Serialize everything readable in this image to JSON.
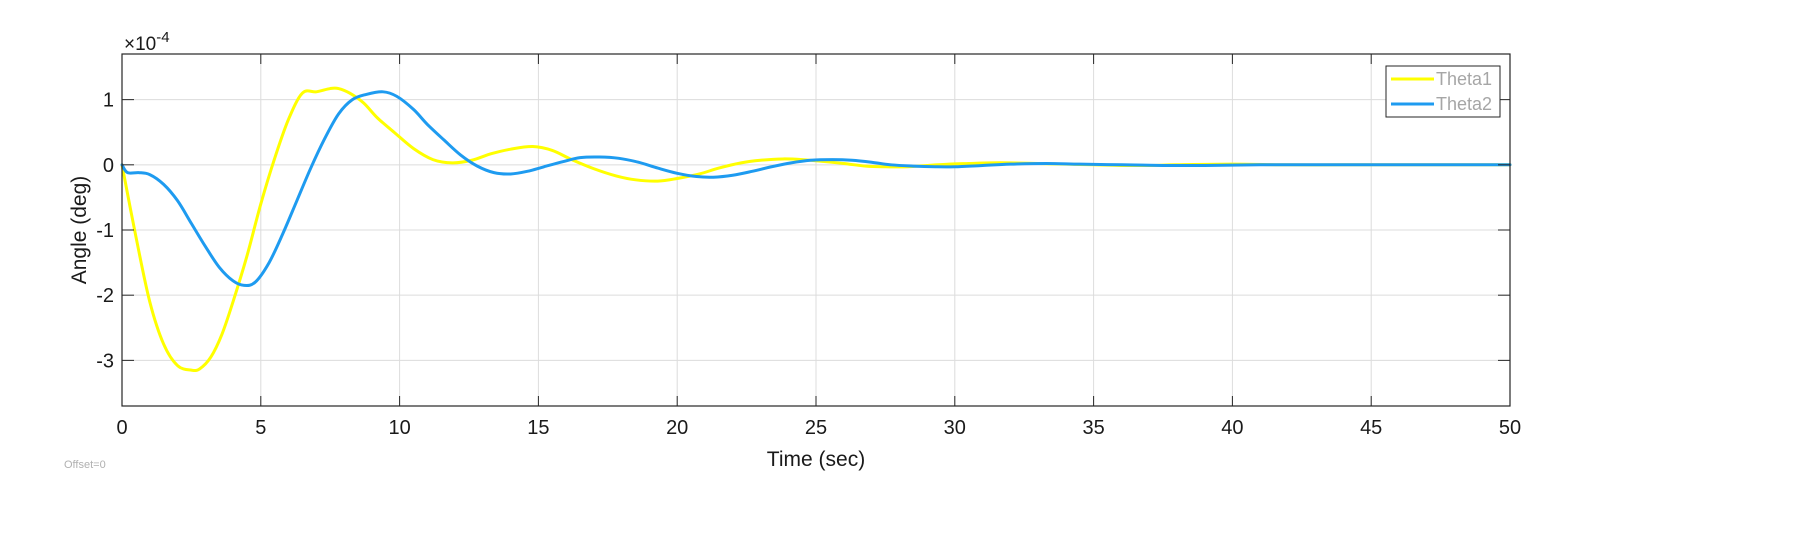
{
  "chart_data": {
    "type": "line",
    "title": "",
    "xlabel": "Time (sec)",
    "ylabel": "Angle (deg)",
    "xlim": [
      0,
      50
    ],
    "ylim": [
      -3.7,
      1.7
    ],
    "y_multiplier_label": "×10",
    "y_multiplier_exponent": "-4",
    "xticks": [
      0,
      5,
      10,
      15,
      20,
      25,
      30,
      35,
      40,
      45,
      50
    ],
    "yticks": [
      -3,
      -2,
      -1,
      0,
      1
    ],
    "grid": true,
    "legend_position": "top-right",
    "series": [
      {
        "name": "Theta1",
        "color": "#ffff00",
        "x": [
          0,
          0.5,
          1,
          1.5,
          2,
          2.5,
          2.8,
          3.2,
          3.6,
          4,
          4.5,
          5,
          5.5,
          6,
          6.5,
          7,
          7.5,
          7.8,
          8.2,
          8.7,
          9.2,
          9.8,
          10.5,
          11.2,
          11.9,
          12.6,
          13.3,
          14,
          14.8,
          15.5,
          16.2,
          17,
          17.8,
          18.5,
          19.3,
          20,
          20.8,
          21.5,
          22.3,
          23,
          23.8,
          24.5,
          25.3,
          26,
          26.8,
          27.5,
          28.3,
          29,
          29.8,
          30.5,
          31.3,
          32,
          33,
          34,
          35,
          36,
          37,
          38,
          40,
          42,
          44,
          46,
          48,
          50
        ],
        "values": [
          0,
          -1.1,
          -2.1,
          -2.75,
          -3.08,
          -3.15,
          -3.13,
          -2.95,
          -2.6,
          -2.1,
          -1.4,
          -0.6,
          0.1,
          0.7,
          1.1,
          1.12,
          1.17,
          1.17,
          1.1,
          0.95,
          0.72,
          0.5,
          0.25,
          0.08,
          0.03,
          0.07,
          0.17,
          0.24,
          0.28,
          0.22,
          0.08,
          -0.06,
          -0.17,
          -0.23,
          -0.25,
          -0.21,
          -0.14,
          -0.05,
          0.03,
          0.07,
          0.09,
          0.08,
          0.05,
          0.02,
          -0.02,
          -0.03,
          -0.03,
          -0.01,
          0.01,
          0.02,
          0.03,
          0.03,
          0.02,
          0.01,
          0.0,
          -0.01,
          -0.01,
          0.0,
          0.01,
          0.0,
          0.0,
          0.0,
          0.0,
          0.0
        ]
      },
      {
        "name": "Theta2",
        "color": "#1e9bf0",
        "x": [
          0,
          0.2,
          0.6,
          1,
          1.5,
          2,
          2.5,
          3,
          3.5,
          4,
          4.4,
          4.8,
          5.3,
          5.8,
          6.3,
          6.8,
          7.3,
          7.8,
          8.3,
          8.8,
          9.4,
          9.9,
          10.5,
          11,
          11.6,
          12.2,
          12.8,
          13.4,
          14,
          14.6,
          15.2,
          15.9,
          16.5,
          17.2,
          17.9,
          18.6,
          19.3,
          20,
          20.7,
          21.3,
          22,
          22.7,
          23.4,
          24.1,
          24.8,
          25.6,
          26.3,
          27,
          27.7,
          28.5,
          29.3,
          30,
          31,
          32,
          33.3,
          34.5,
          36,
          37.5,
          39,
          41,
          43,
          45,
          47,
          50
        ],
        "values": [
          0,
          -0.12,
          -0.12,
          -0.15,
          -0.3,
          -0.55,
          -0.9,
          -1.25,
          -1.57,
          -1.78,
          -1.85,
          -1.8,
          -1.5,
          -1.05,
          -0.55,
          -0.05,
          0.4,
          0.78,
          1.0,
          1.08,
          1.12,
          1.05,
          0.85,
          0.62,
          0.38,
          0.15,
          -0.02,
          -0.12,
          -0.14,
          -0.1,
          -0.03,
          0.05,
          0.11,
          0.12,
          0.1,
          0.04,
          -0.05,
          -0.13,
          -0.18,
          -0.19,
          -0.16,
          -0.1,
          -0.03,
          0.03,
          0.07,
          0.08,
          0.07,
          0.04,
          0.0,
          -0.02,
          -0.03,
          -0.03,
          -0.01,
          0.01,
          0.02,
          0.01,
          0.0,
          -0.01,
          -0.01,
          0.0,
          0.0,
          0.0,
          0.0,
          0.0
        ]
      }
    ]
  },
  "footer": {
    "offset_text": "Offset=0"
  }
}
